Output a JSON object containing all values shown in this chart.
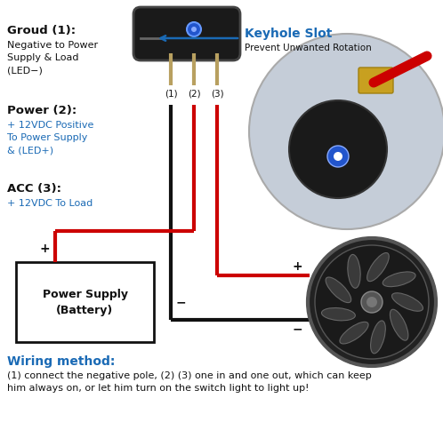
{
  "bg_color": "#ffffff",
  "blue_color": "#1a6ab5",
  "red_color": "#cc0000",
  "black_color": "#111111",
  "box_color": "#ffffff",
  "labels": {
    "groud_title": "Groud (1):",
    "groud_desc": "Negative to Power\nSupply & Load\n(LED−)",
    "power_title": "Power (2):",
    "power_desc": "+ 12VDC Positive\nTo Power Supply\n& (LED+)",
    "acc_title": "ACC (3):",
    "acc_desc": "+ 12VDC To Load",
    "keyhole_title": "Keyhole Slot",
    "keyhole_desc": "Prevent Unwanted Rotation",
    "prong1": "(1)",
    "prong2": "(2)",
    "prong3": "(3)",
    "battery_line1": "Power Supply",
    "battery_line2": "(Battery)",
    "wiring_title": "Wiring method:",
    "wiring_desc": "(1) connect the negative pole, (2) (3) one in and one out, which can keep\nhim always on, or let him turn on the switch light to light up!"
  }
}
